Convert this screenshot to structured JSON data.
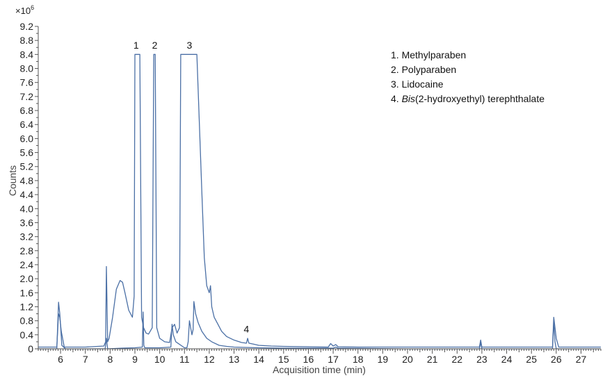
{
  "chart_data": {
    "type": "line",
    "xlabel": "Acquisition time (min)",
    "ylabel": "Counts",
    "y_multiplier": "×10",
    "y_exponent": "6",
    "xlim": [
      5.1,
      27.8
    ],
    "ylim": [
      0,
      9.2
    ],
    "x_ticks": [
      6,
      7,
      8,
      9,
      10,
      11,
      12,
      13,
      14,
      15,
      16,
      17,
      18,
      19,
      20,
      21,
      22,
      23,
      24,
      25,
      26,
      27
    ],
    "y_ticks": [
      "0",
      "0.4",
      "0.8",
      "1.2",
      "1.6",
      "2.0",
      "2.4",
      "2.8",
      "3.2",
      "3.6",
      "4.0",
      "4.4",
      "4.8",
      "5.2",
      "5.6",
      "6.0",
      "6.4",
      "6.8",
      "7.2",
      "7.6",
      "8.0",
      "8.4",
      "8.8",
      "9.2"
    ],
    "grid": false,
    "legend_position": "top-right",
    "line_color": "#4a6fa5",
    "peak_labels": [
      {
        "text": "1",
        "x": 9.05,
        "y": 8.45
      },
      {
        "text": "2",
        "x": 9.8,
        "y": 8.45
      },
      {
        "text": "3",
        "x": 11.2,
        "y": 8.45
      },
      {
        "text": "4",
        "x": 13.5,
        "y": 0.35
      }
    ],
    "legend": [
      {
        "num": "1. ",
        "italic": "",
        "rest": "Methylparaben"
      },
      {
        "num": "2. ",
        "italic": "",
        "rest": "Polyparaben"
      },
      {
        "num": "3. ",
        "italic": "",
        "rest": "Lidocaine"
      },
      {
        "num": "4. ",
        "italic": "Bis",
        "rest": "(2-hydroxyethyl) terephthalate"
      }
    ],
    "series": [
      {
        "x": [
          5.1,
          5.85,
          5.92,
          5.97,
          6.03,
          6.15,
          6.3,
          7.0,
          7.75,
          7.82,
          7.85,
          7.9,
          7.96,
          8.1,
          8.25,
          8.4,
          8.5,
          8.6,
          8.75,
          8.9,
          8.97,
          9.0,
          9.2,
          9.27,
          9.35,
          9.45,
          9.55,
          9.7,
          9.76,
          9.82,
          9.88,
          10.0,
          10.2,
          10.4,
          10.5,
          10.6,
          10.7,
          10.8,
          10.85,
          10.95,
          11.0,
          11.1,
          11.3,
          11.5,
          11.7,
          11.8,
          11.9,
          12.0,
          12.05,
          12.1,
          12.2,
          12.35,
          12.5,
          12.7,
          13.0,
          13.3,
          13.5,
          13.55,
          13.6,
          13.8,
          14.0,
          14.5,
          15.0,
          16.0,
          16.8,
          16.9,
          17.0,
          17.1,
          17.2,
          18.0,
          20.0,
          22.0,
          22.9,
          22.95,
          23.0,
          23.1,
          24.0,
          25.5,
          25.85,
          25.9,
          25.95,
          26.0,
          26.1,
          27.0,
          27.8
        ],
        "y": [
          0.05,
          0.05,
          1.0,
          0.9,
          0.5,
          0.05,
          0.05,
          0.05,
          0.08,
          0.2,
          2.35,
          0.2,
          0.3,
          0.9,
          1.7,
          1.95,
          1.9,
          1.6,
          1.1,
          0.9,
          1.5,
          8.4,
          8.4,
          0.9,
          0.6,
          0.45,
          0.42,
          0.6,
          8.4,
          8.4,
          0.6,
          0.3,
          0.2,
          0.18,
          0.6,
          0.7,
          0.45,
          0.6,
          8.4,
          8.4,
          8.4,
          8.4,
          8.4,
          8.4,
          4.5,
          2.6,
          1.8,
          1.6,
          1.8,
          1.2,
          0.9,
          0.7,
          0.5,
          0.35,
          0.25,
          0.18,
          0.16,
          0.3,
          0.16,
          0.13,
          0.1,
          0.08,
          0.07,
          0.06,
          0.05,
          0.15,
          0.08,
          0.12,
          0.06,
          0.05,
          0.05,
          0.05,
          0.05,
          0.25,
          0.05,
          0.05,
          0.05,
          0.05,
          0.05,
          0.9,
          0.6,
          0.3,
          0.05,
          0.05,
          0.05
        ]
      },
      {
        "x": [
          5.1,
          5.85,
          5.92,
          5.97,
          6.05,
          6.2,
          7.0,
          7.8,
          7.85,
          7.9,
          8.5,
          9.0,
          9.3,
          9.33,
          9.36,
          9.4,
          10.0,
          10.45,
          10.5,
          10.55,
          10.65,
          11.0,
          11.1,
          11.15,
          11.2,
          11.25,
          11.3,
          11.35,
          11.38,
          11.45,
          11.55,
          11.7,
          11.9,
          12.1,
          12.4,
          12.7,
          13.0,
          13.5,
          14.0,
          15.0,
          17.0,
          17.1,
          17.2,
          20.0,
          22.9,
          22.95,
          23.0,
          25.85,
          25.9,
          25.95,
          26.0,
          27.8
        ],
        "y": [
          0.0,
          0.0,
          1.33,
          1.0,
          0.1,
          0.0,
          0.0,
          0.0,
          0.3,
          0.0,
          0.02,
          0.03,
          0.05,
          1.05,
          0.1,
          0.03,
          0.03,
          0.05,
          0.7,
          0.4,
          0.2,
          0.03,
          0.03,
          0.2,
          0.8,
          0.6,
          0.4,
          0.55,
          1.35,
          1.0,
          0.75,
          0.5,
          0.3,
          0.2,
          0.1,
          0.07,
          0.05,
          0.04,
          0.03,
          0.02,
          0.02,
          0.05,
          0.02,
          0.0,
          0.0,
          0.18,
          0.0,
          0.0,
          0.75,
          0.2,
          0.0,
          0.0
        ]
      }
    ]
  }
}
